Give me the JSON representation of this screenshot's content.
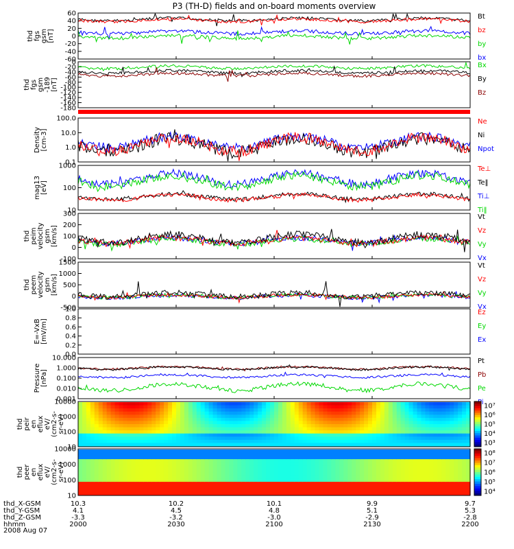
{
  "title": "P3 (TH-D) fields and on-board moments overview",
  "date": "2008 Aug 07",
  "colors": {
    "black": "#000000",
    "red": "#ff0000",
    "green": "#00d800",
    "blue": "#0000ff",
    "darkred": "#8b0000"
  },
  "chart_data": [
    {
      "id": "fgs",
      "type": "line",
      "ylabel": [
        "thd",
        "fgs",
        "gsm",
        "[nT]"
      ],
      "yticks": [
        "60",
        "40",
        "20",
        "0",
        "-20",
        "-40",
        "-60"
      ],
      "legend": [
        {
          "name": "Bt",
          "color": "#000000"
        },
        {
          "name": "bz",
          "color": "#ff0000"
        },
        {
          "name": "by",
          "color": "#00d800"
        },
        {
          "name": "bx",
          "color": "#0000ff"
        }
      ]
    },
    {
      "id": "fgs_dsl",
      "type": "line",
      "ylabel": [
        "thd",
        "fgs",
        "gsm",
        "-189",
        "[nT]"
      ],
      "yticks": [
        "0",
        "-20",
        "-40",
        "-60",
        "-80",
        "-100",
        "-120",
        "-140",
        "-160",
        "-180"
      ],
      "legend": [
        {
          "name": "Bx",
          "color": "#00d800"
        },
        {
          "name": "By",
          "color": "#000000"
        },
        {
          "name": "Bz",
          "color": "#8b0000"
        }
      ]
    },
    {
      "id": "density",
      "type": "line",
      "ylog": true,
      "ylabel": [
        "Density",
        "[cm-3]"
      ],
      "yticks": [
        "100.0",
        "10.0",
        "1.0",
        "0.1"
      ],
      "legend": [
        {
          "name": "Ne",
          "color": "#ff0000"
        },
        {
          "name": "Ni",
          "color": "#000000"
        },
        {
          "name": "Npot",
          "color": "#0000ff"
        }
      ]
    },
    {
      "id": "temp",
      "type": "line",
      "ylog": true,
      "ylabel": [
        "mag13",
        "[eV]"
      ],
      "yticks": [
        "1000",
        "100",
        "10"
      ],
      "legend": [
        {
          "name": "Te⊥",
          "color": "#ff0000"
        },
        {
          "name": "Te‖",
          "color": "#000000"
        },
        {
          "name": "Ti⊥",
          "color": "#0000ff"
        },
        {
          "name": "Ti‖",
          "color": "#00d800"
        }
      ]
    },
    {
      "id": "peim_v",
      "type": "line",
      "ylabel": [
        "thd",
        "peim",
        "velocity",
        "gsm",
        "[km/s]"
      ],
      "yticks": [
        "300",
        "200",
        "100",
        "0",
        "-100"
      ],
      "legend": [
        {
          "name": "Vt",
          "color": "#000000"
        },
        {
          "name": "Vz",
          "color": "#ff0000"
        },
        {
          "name": "Vy",
          "color": "#00d800"
        },
        {
          "name": "Vx",
          "color": "#0000ff"
        }
      ]
    },
    {
      "id": "peem_v",
      "type": "line",
      "ylabel": [
        "thd",
        "peem",
        "velocity",
        "gsm",
        "[km/s]"
      ],
      "yticks": [
        "1500",
        "1000",
        "500",
        "0",
        "-500"
      ],
      "legend": [
        {
          "name": "Vt",
          "color": "#000000"
        },
        {
          "name": "Vz",
          "color": "#ff0000"
        },
        {
          "name": "Vy",
          "color": "#00d800"
        },
        {
          "name": "Vx",
          "color": "#0000ff"
        }
      ]
    },
    {
      "id": "efield",
      "type": "line",
      "ylabel": [
        "E=-VxB",
        "[mV/m]"
      ],
      "yticks": [
        "1.0",
        "0.8",
        "0.6",
        "0.4",
        "0.2",
        "0.0"
      ],
      "legend": [
        {
          "name": "Ez",
          "color": "#ff0000"
        },
        {
          "name": "Ey",
          "color": "#00d800"
        },
        {
          "name": "Ex",
          "color": "#0000ff"
        }
      ]
    },
    {
      "id": "pressure",
      "type": "line",
      "ylog": true,
      "ylabel": [
        "Pressure",
        "[nPa]"
      ],
      "yticks": [
        "10.000",
        "1.000",
        "0.100",
        "0.010",
        "0.001"
      ],
      "legend": [
        {
          "name": "Pt",
          "color": "#000000"
        },
        {
          "name": "Pb",
          "color": "#8b0000"
        },
        {
          "name": "Pe",
          "color": "#00d800"
        },
        {
          "name": "Pi",
          "color": "#0000ff"
        }
      ]
    },
    {
      "id": "peir",
      "type": "heatmap",
      "ylabel": [
        "thd",
        "peir",
        "en",
        "eflux",
        "eV/",
        "(cm2-s-",
        "sr-eV)"
      ],
      "yticks": [
        "10000",
        "1000",
        "100",
        "10"
      ],
      "cbar": [
        "10⁷",
        "10⁶",
        "10⁵",
        "10⁴",
        "10³"
      ]
    },
    {
      "id": "peer",
      "type": "heatmap",
      "ylabel": [
        "thd",
        "peer",
        "en",
        "eflux",
        "eV/",
        "(cm2-s-",
        "sr-eV)"
      ],
      "yticks": [
        "10000",
        "1000",
        "100",
        "10"
      ],
      "cbar": [
        "10⁸",
        "10⁷",
        "10⁶",
        "10⁵",
        "10⁴"
      ]
    }
  ],
  "xaxis": {
    "rows": [
      {
        "label": "thd_X-GSM",
        "values": [
          "10.3",
          "10.2",
          "10.1",
          "9.9",
          "9.7"
        ]
      },
      {
        "label": "thd_Y-GSM",
        "values": [
          "4.1",
          "4.5",
          "4.8",
          "5.1",
          "5.3"
        ]
      },
      {
        "label": "thd_Z-GSM",
        "values": [
          "-3.3",
          "-3.2",
          "-3.0",
          "-2.9",
          "-2.8"
        ]
      },
      {
        "label": "hhmm",
        "values": [
          "2000",
          "2030",
          "2100",
          "2130",
          "2200"
        ]
      }
    ]
  }
}
